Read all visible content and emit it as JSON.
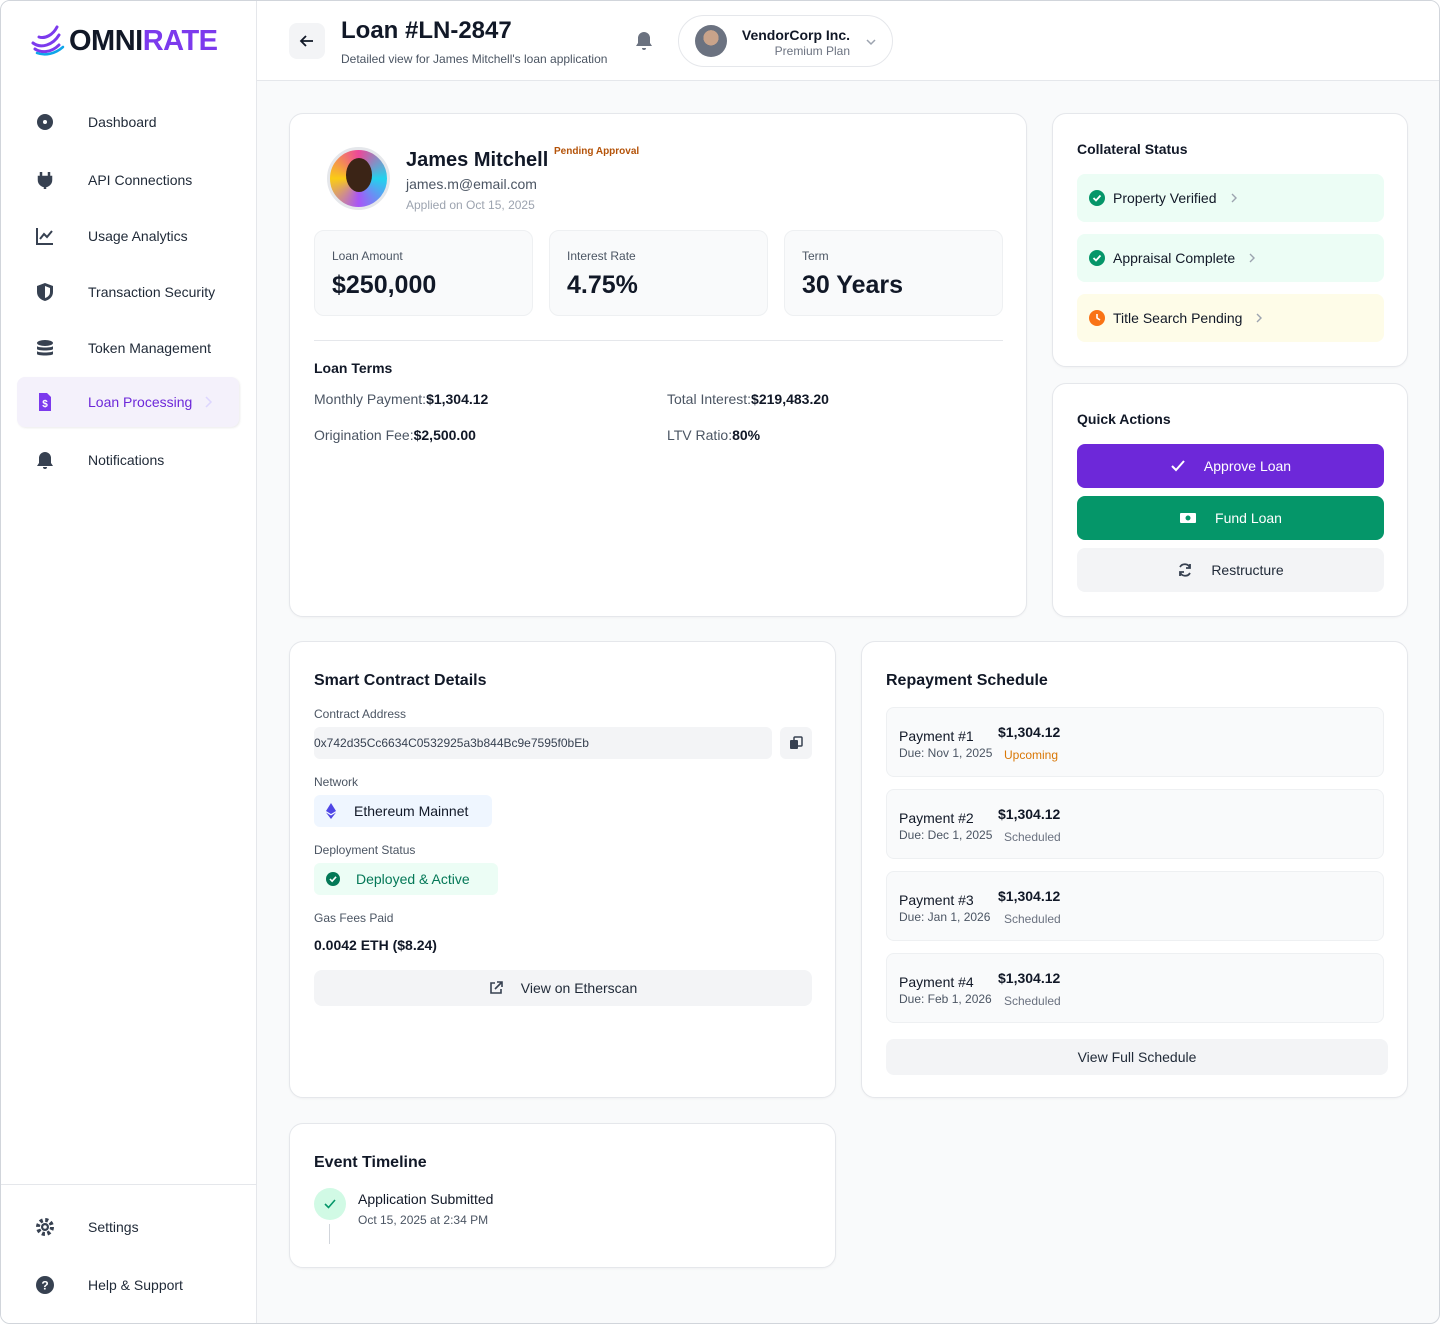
{
  "sidebar": {
    "brand": [
      "OMNI",
      "RATE"
    ],
    "nav": [
      "Dashboard",
      "API Connections",
      "Usage Analytics",
      "Transaction Security",
      "Token Management",
      "Loan Processing",
      "Notifications"
    ],
    "footer_nav": [
      "Settings",
      "Help & Support"
    ]
  },
  "header": {
    "title": "Loan #LN-2847",
    "subtitle": "Detailed view for James Mitchell's loan application",
    "account": {
      "name": "VendorCorp Inc.",
      "plan": "Premium Plan"
    }
  },
  "applicant": {
    "name": "James Mitchell",
    "status": "Pending Approval",
    "email": "james.m@email.com",
    "applied": "Applied on Oct 15, 2025"
  },
  "stats": [
    {
      "label": "Loan Amount",
      "value": "$250,000"
    },
    {
      "label": "Interest Rate",
      "value": "4.75%"
    },
    {
      "label": "Term",
      "value": "30 Years"
    }
  ],
  "loan_terms": {
    "title": "Loan Terms",
    "items": [
      {
        "label": "Monthly Payment:",
        "value": "$1,304.12"
      },
      {
        "label": "Total Interest:",
        "value": "$219,483.20"
      },
      {
        "label": "Origination Fee:",
        "value": "$2,500.00"
      },
      {
        "label": "LTV Ratio:",
        "value": "80%"
      }
    ]
  },
  "collateral": {
    "title": "Collateral Status",
    "items": [
      "Property Verified",
      "Appraisal Complete",
      "Title Search Pending"
    ]
  },
  "quick_actions": {
    "title": "Quick Actions",
    "buttons": [
      "Approve Loan",
      "Fund Loan",
      "Restructure"
    ]
  },
  "contract": {
    "title": "Smart Contract Details",
    "address_label": "Contract Address",
    "address": "0x742d35Cc6634C0532925a3b844Bc9e7595f0bEb",
    "network_label": "Network",
    "network": "Ethereum Mainnet",
    "deployment_label": "Deployment Status",
    "deployment": "Deployed & Active",
    "gas_label": "Gas Fees Paid",
    "gas": "0.0042 ETH ($8.24)",
    "button": "View on Etherscan"
  },
  "repayment": {
    "title": "Repayment Schedule",
    "payments": [
      {
        "name": "Payment #1",
        "due": "Due: Nov 1, 2025",
        "amount": "$1,304.12",
        "status": "Upcoming"
      },
      {
        "name": "Payment #2",
        "due": "Due: Dec 1, 2025",
        "amount": "$1,304.12",
        "status": "Scheduled"
      },
      {
        "name": "Payment #3",
        "due": "Due: Jan 1, 2026",
        "amount": "$1,304.12",
        "status": "Scheduled"
      },
      {
        "name": "Payment #4",
        "due": "Due: Feb 1, 2026",
        "amount": "$1,304.12",
        "status": "Scheduled"
      }
    ],
    "button": "View Full Schedule"
  },
  "timeline": {
    "title": "Event Timeline",
    "events": [
      {
        "title": "Application Submitted",
        "time": "Oct 15, 2025 at 2:34 PM"
      }
    ]
  }
}
